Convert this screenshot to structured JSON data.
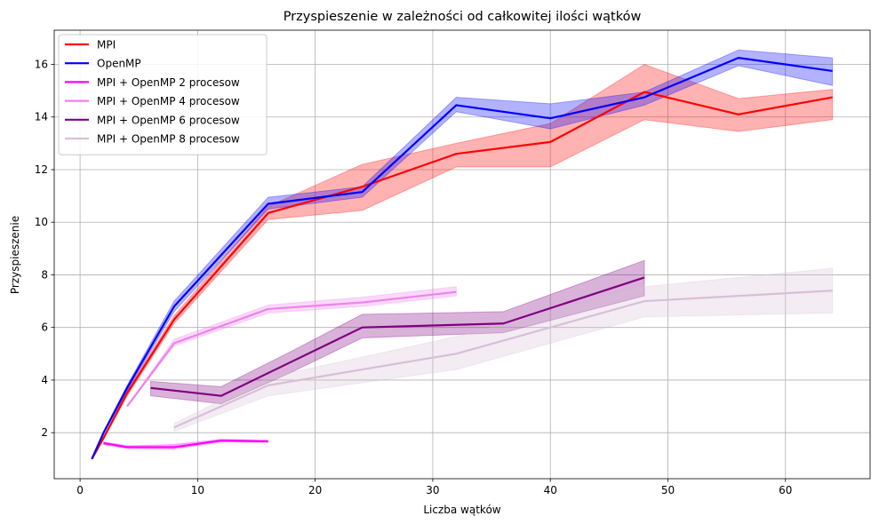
{
  "chart_data": {
    "type": "line",
    "title": "Przyspieszenie w zależności od całkowitej ilości wątków",
    "xlabel": "Liczba wątków",
    "ylabel": "Przyspieszenie",
    "xlim": [
      -2.2,
      67.2
    ],
    "ylim": [
      0.25,
      17.3
    ],
    "xticks": [
      0,
      10,
      20,
      30,
      40,
      50,
      60
    ],
    "yticks": [
      2,
      4,
      6,
      8,
      10,
      12,
      14,
      16
    ],
    "grid": true,
    "legend_position": "top-left",
    "series": [
      {
        "name": "MPI",
        "color": "#ff0000",
        "x": [
          1,
          2,
          4,
          8,
          16,
          24,
          32,
          40,
          48,
          56,
          64
        ],
        "y": [
          1.0,
          1.8,
          3.5,
          6.3,
          10.35,
          11.35,
          12.6,
          13.05,
          14.95,
          14.1,
          14.75
        ],
        "low": [
          1.0,
          1.75,
          3.4,
          6.15,
          10.1,
          10.45,
          12.1,
          12.1,
          13.9,
          13.45,
          13.9
        ],
        "high": [
          1.0,
          1.85,
          3.6,
          6.45,
          10.6,
          12.2,
          13.0,
          13.75,
          16.0,
          14.7,
          15.05
        ]
      },
      {
        "name": "OpenMP",
        "color": "#0000ff",
        "x": [
          1,
          2,
          4,
          8,
          16,
          24,
          32,
          40,
          48,
          56,
          64
        ],
        "y": [
          1.0,
          2.0,
          3.7,
          6.8,
          10.7,
          11.15,
          14.45,
          13.95,
          14.75,
          16.25,
          15.75
        ],
        "low": [
          1.0,
          1.95,
          3.6,
          6.6,
          10.5,
          10.95,
          14.2,
          13.55,
          14.45,
          15.95,
          15.2
        ],
        "high": [
          1.0,
          2.05,
          3.8,
          7.0,
          10.95,
          11.35,
          14.75,
          14.5,
          14.95,
          16.55,
          16.25
        ]
      },
      {
        "name": "MPI + OpenMP 2 procesow",
        "color": "#ff00ff",
        "x": [
          2,
          4,
          8,
          12,
          16
        ],
        "y": [
          1.6,
          1.45,
          1.45,
          1.7,
          1.67
        ],
        "low": [
          1.55,
          1.4,
          1.38,
          1.65,
          1.63
        ],
        "high": [
          1.65,
          1.5,
          1.55,
          1.75,
          1.71
        ]
      },
      {
        "name": "MPI + OpenMP 4 procesow",
        "color": "#ee82ee",
        "x": [
          4,
          8,
          16,
          24,
          32
        ],
        "y": [
          3.0,
          5.4,
          6.7,
          6.95,
          7.35
        ],
        "low": [
          3.0,
          5.3,
          6.55,
          6.8,
          7.2
        ],
        "high": [
          3.0,
          5.55,
          6.85,
          7.15,
          7.55
        ]
      },
      {
        "name": "MPI + OpenMP 6 procesow",
        "color": "#800080",
        "x": [
          6,
          12,
          18,
          24,
          36,
          48
        ],
        "y": [
          3.7,
          3.4,
          4.7,
          6.0,
          6.15,
          7.9
        ],
        "low": [
          3.4,
          3.1,
          4.3,
          5.6,
          5.8,
          7.2
        ],
        "high": [
          3.95,
          3.75,
          5.1,
          6.5,
          6.6,
          8.55
        ]
      },
      {
        "name": "MPI + OpenMP 8 procesow",
        "color": "#d8bfd8",
        "x": [
          8,
          16,
          32,
          48,
          64
        ],
        "y": [
          2.2,
          3.8,
          5.0,
          7.0,
          7.4
        ],
        "low": [
          2.05,
          3.4,
          4.4,
          6.4,
          6.55
        ],
        "high": [
          2.35,
          4.1,
          5.65,
          7.55,
          8.25
        ]
      }
    ]
  }
}
